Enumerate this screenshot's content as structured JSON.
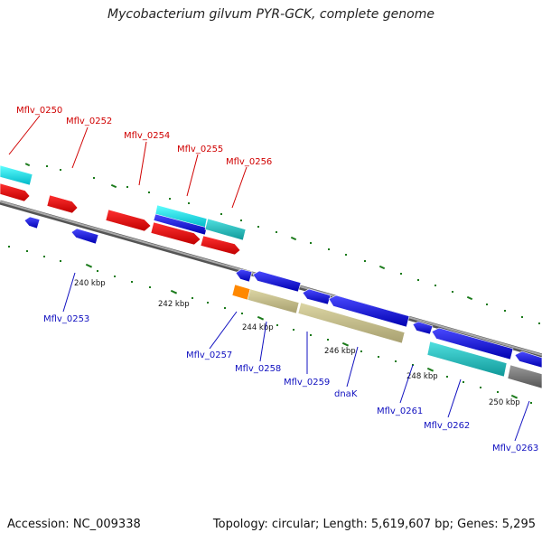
{
  "title": "Mycobacterium gilvum PYR-GCK, complete genome",
  "footer": {
    "accession": "Accession: NC_009338",
    "topology": "Topology: circular; Length: 5,619,607 bp; Genes: 5,295"
  },
  "colors": {
    "red_gene": "#e00000",
    "blue_gene": "#0000dd",
    "cyan_gene": "#00d8e0",
    "teal_gene": "#20c8c8",
    "olive_gene": "#c8c08a",
    "orange_gene": "#ff8800",
    "backbone": "#888888",
    "tick": "#1a7a1a"
  },
  "labels_top": [
    "Mflv_0250",
    "Mflv_0252",
    "Mflv_0254",
    "Mflv_0255",
    "Mflv_0256"
  ],
  "labels_bottom": [
    "Mflv_0253",
    "Mflv_0257",
    "Mflv_0258",
    "Mflv_0259",
    "dnaK",
    "Mflv_0261",
    "Mflv_0262",
    "Mflv_0263"
  ],
  "kbp_ticks": [
    "240 kbp",
    "242 kbp",
    "244 kbp",
    "246 kbp",
    "248 kbp",
    "250 kbp"
  ]
}
